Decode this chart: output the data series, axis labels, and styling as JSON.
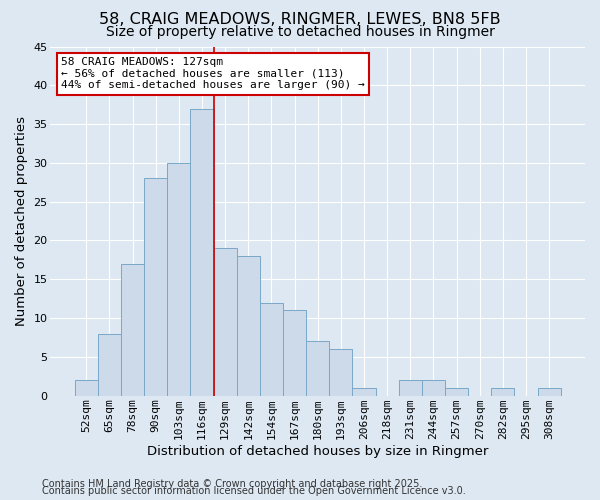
{
  "title": "58, CRAIG MEADOWS, RINGMER, LEWES, BN8 5FB",
  "subtitle": "Size of property relative to detached houses in Ringmer",
  "xlabel": "Distribution of detached houses by size in Ringmer",
  "ylabel": "Number of detached properties",
  "bin_labels": [
    "52sqm",
    "65sqm",
    "78sqm",
    "90sqm",
    "103sqm",
    "116sqm",
    "129sqm",
    "142sqm",
    "154sqm",
    "167sqm",
    "180sqm",
    "193sqm",
    "206sqm",
    "218sqm",
    "231sqm",
    "244sqm",
    "257sqm",
    "270sqm",
    "282sqm",
    "295sqm",
    "308sqm"
  ],
  "bar_heights": [
    2,
    8,
    17,
    28,
    30,
    37,
    19,
    18,
    12,
    11,
    7,
    6,
    1,
    0,
    2,
    2,
    1,
    0,
    1,
    0,
    1
  ],
  "bar_color": "#ccdaea",
  "bar_edgecolor": "#7aa8c8",
  "vline_color": "#cc0000",
  "annotation_title": "58 CRAIG MEADOWS: 127sqm",
  "annotation_line1": "← 56% of detached houses are smaller (113)",
  "annotation_line2": "44% of semi-detached houses are larger (90) →",
  "annotation_box_edgecolor": "#cc0000",
  "ylim": [
    0,
    45
  ],
  "yticks": [
    0,
    5,
    10,
    15,
    20,
    25,
    30,
    35,
    40,
    45
  ],
  "footer1": "Contains HM Land Registry data © Crown copyright and database right 2025.",
  "footer2": "Contains public sector information licensed under the Open Government Licence v3.0.",
  "background_color": "#dde8f2",
  "grid_color": "#ffffff",
  "title_fontsize": 11.5,
  "subtitle_fontsize": 10,
  "axis_label_fontsize": 9.5,
  "tick_fontsize": 8,
  "annotation_fontsize": 8,
  "footer_fontsize": 7
}
